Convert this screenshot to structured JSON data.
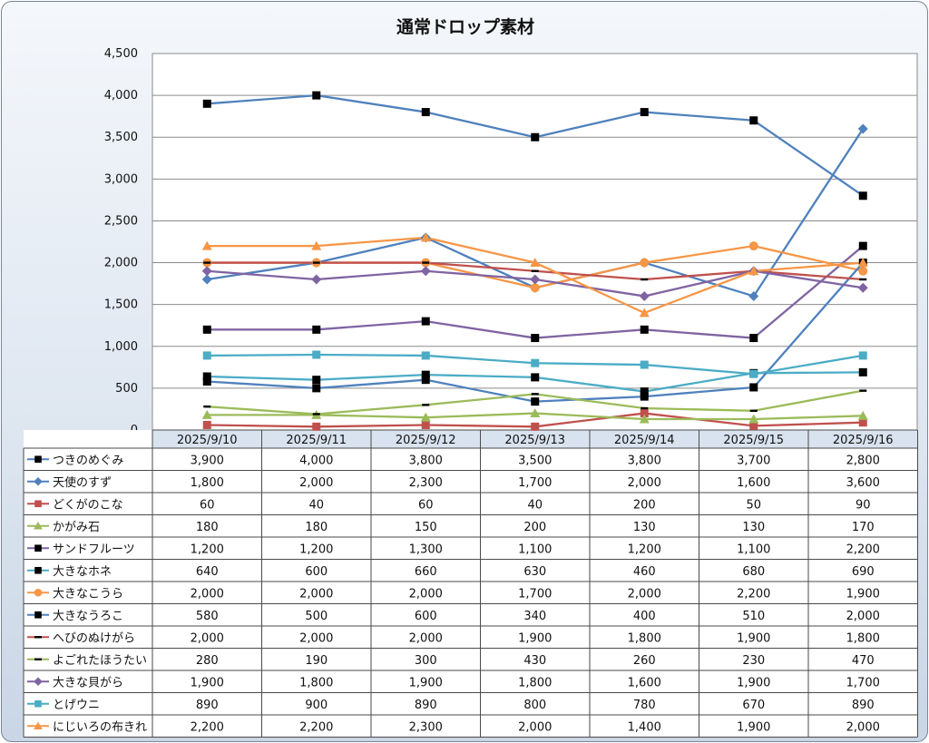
{
  "chart_data": {
    "type": "line",
    "title": "通常ドロップ素材",
    "xlabel": "",
    "ylabel": "",
    "ylim": [
      0,
      4500
    ],
    "yticks": [
      "0",
      "500",
      "1,000",
      "1,500",
      "2,000",
      "2,500",
      "3,000",
      "3,500",
      "4,000",
      "4,500"
    ],
    "grid": true,
    "legend": "data-table",
    "categories": [
      "2025/9/10",
      "2025/9/11",
      "2025/9/12",
      "2025/9/13",
      "2025/9/14",
      "2025/9/15",
      "2025/9/16"
    ],
    "series": [
      {
        "name": "つきのめぐみ",
        "color": "#000000",
        "marker": "square",
        "line": "#4f81bd",
        "values": [
          3900,
          4000,
          3800,
          3500,
          3800,
          3700,
          2800
        ]
      },
      {
        "name": "天使のすず",
        "color": "#4f81bd",
        "marker": "diamond",
        "line": "#4f81bd",
        "values": [
          1800,
          2000,
          2300,
          1700,
          2000,
          1600,
          3600
        ]
      },
      {
        "name": "どくがのこな",
        "color": "#c0504d",
        "marker": "square",
        "line": "#c0504d",
        "values": [
          60,
          40,
          60,
          40,
          200,
          50,
          90
        ]
      },
      {
        "name": "かがみ石",
        "color": "#9bbb59",
        "marker": "triangle",
        "line": "#9bbb59",
        "values": [
          180,
          180,
          150,
          200,
          130,
          130,
          170
        ]
      },
      {
        "name": "サンドフルーツ",
        "color": "#000000",
        "marker": "square",
        "line": "#8064a2",
        "values": [
          1200,
          1200,
          1300,
          1100,
          1200,
          1100,
          2200
        ]
      },
      {
        "name": "大きなホネ",
        "color": "#000000",
        "marker": "square",
        "line": "#4bacc6",
        "values": [
          640,
          600,
          660,
          630,
          460,
          680,
          690
        ]
      },
      {
        "name": "大きなこうら",
        "color": "#f79646",
        "marker": "circle",
        "line": "#f79646",
        "values": [
          2000,
          2000,
          2000,
          1700,
          2000,
          2200,
          1900
        ]
      },
      {
        "name": "大きなうろこ",
        "color": "#000000",
        "marker": "square",
        "line": "#4f81bd",
        "values": [
          580,
          500,
          600,
          340,
          400,
          510,
          2000
        ]
      },
      {
        "name": "へびのぬけがら",
        "color": "#000000",
        "marker": "dash",
        "line": "#c0504d",
        "values": [
          2000,
          2000,
          2000,
          1900,
          1800,
          1900,
          1800
        ]
      },
      {
        "name": "よごれたほうたい",
        "color": "#000000",
        "marker": "dash",
        "line": "#9bbb59",
        "values": [
          280,
          190,
          300,
          430,
          260,
          230,
          470
        ]
      },
      {
        "name": "大きな貝がら",
        "color": "#8064a2",
        "marker": "diamond",
        "line": "#8064a2",
        "values": [
          1900,
          1800,
          1900,
          1800,
          1600,
          1900,
          1700
        ]
      },
      {
        "name": "とげウニ",
        "color": "#4bacc6",
        "marker": "square",
        "line": "#4bacc6",
        "values": [
          890,
          900,
          890,
          800,
          780,
          670,
          890
        ]
      },
      {
        "name": "にじいろの布きれ",
        "color": "#f79646",
        "marker": "triangle",
        "line": "#f79646",
        "values": [
          2200,
          2200,
          2300,
          2000,
          1400,
          1900,
          2000
        ]
      }
    ],
    "table_values": [
      [
        "3,900",
        "4,000",
        "3,800",
        "3,500",
        "3,800",
        "3,700",
        "2,800"
      ],
      [
        "1,800",
        "2,000",
        "2,300",
        "1,700",
        "2,000",
        "1,600",
        "3,600"
      ],
      [
        "60",
        "40",
        "60",
        "40",
        "200",
        "50",
        "90"
      ],
      [
        "180",
        "180",
        "150",
        "200",
        "130",
        "130",
        "170"
      ],
      [
        "1,200",
        "1,200",
        "1,300",
        "1,100",
        "1,200",
        "1,100",
        "2,200"
      ],
      [
        "640",
        "600",
        "660",
        "630",
        "460",
        "680",
        "690"
      ],
      [
        "2,000",
        "2,000",
        "2,000",
        "1,700",
        "2,000",
        "2,200",
        "1,900"
      ],
      [
        "580",
        "500",
        "600",
        "340",
        "400",
        "510",
        "2,000"
      ],
      [
        "2,000",
        "2,000",
        "2,000",
        "1,900",
        "1,800",
        "1,900",
        "1,800"
      ],
      [
        "280",
        "190",
        "300",
        "430",
        "260",
        "230",
        "470"
      ],
      [
        "1,900",
        "1,800",
        "1,900",
        "1,800",
        "1,600",
        "1,900",
        "1,700"
      ],
      [
        "890",
        "900",
        "890",
        "800",
        "780",
        "670",
        "890"
      ],
      [
        "2,200",
        "2,200",
        "2,300",
        "2,000",
        "1,400",
        "1,900",
        "2,000"
      ]
    ]
  }
}
